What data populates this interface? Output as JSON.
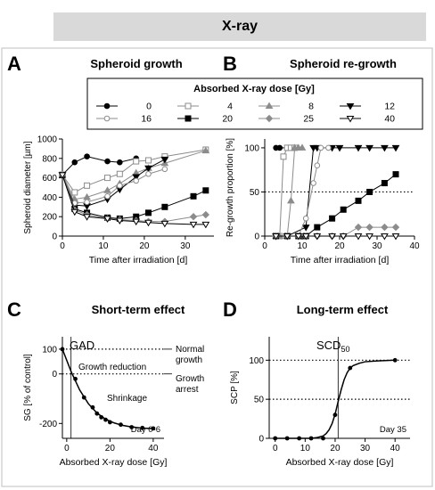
{
  "figure_title": "X-ray",
  "panels": {
    "A": {
      "letter": "A",
      "title": "Spheroid growth"
    },
    "B": {
      "letter": "B",
      "title": "Spheroid re-growth"
    },
    "C": {
      "letter": "C",
      "title": "Short-term effect"
    },
    "D": {
      "letter": "D",
      "title": "Long-term effect"
    }
  },
  "legend": {
    "title": "Absorbed X-ray dose [Gy]",
    "placement": "top-center",
    "entries": [
      {
        "label": "0",
        "marker": "circle-filled"
      },
      {
        "label": "4",
        "marker": "square-open"
      },
      {
        "label": "8",
        "marker": "triangle-up-filled-gray"
      },
      {
        "label": "12",
        "marker": "triangle-down-filled"
      },
      {
        "label": "16",
        "marker": "circle-open"
      },
      {
        "label": "20",
        "marker": "square-filled"
      },
      {
        "label": "25",
        "marker": "diamond-filled-gray"
      },
      {
        "label": "40",
        "marker": "triangle-down-open"
      }
    ]
  },
  "chart_data": [
    {
      "id": "A",
      "type": "line",
      "title": "Spheroid growth",
      "xlabel": "Time after irradiation [d]",
      "ylabel": "Spheroid diameter [µm]",
      "xlim": [
        0,
        37
      ],
      "ylim": [
        0,
        1000
      ],
      "xticks": [
        0,
        10,
        20,
        30
      ],
      "yticks": [
        0,
        200,
        400,
        600,
        800,
        1000
      ],
      "grid": false,
      "series": [
        {
          "name": "0",
          "x": [
            0,
            3,
            6,
            11,
            14,
            18
          ],
          "y": [
            630,
            760,
            820,
            770,
            760,
            800
          ]
        },
        {
          "name": "4",
          "x": [
            0,
            3,
            6,
            11,
            14,
            18,
            21,
            25,
            35
          ],
          "y": [
            630,
            450,
            520,
            600,
            640,
            770,
            780,
            820,
            890
          ]
        },
        {
          "name": "8",
          "x": [
            0,
            3,
            6,
            11,
            14,
            18,
            21,
            25,
            35
          ],
          "y": [
            630,
            380,
            400,
            470,
            540,
            650,
            700,
            750,
            880
          ]
        },
        {
          "name": "12",
          "x": [
            0,
            3,
            6,
            11,
            14,
            18,
            21,
            25
          ],
          "y": [
            630,
            320,
            310,
            380,
            480,
            610,
            700,
            790
          ]
        },
        {
          "name": "16",
          "x": [
            0,
            3,
            6,
            11,
            14,
            18,
            21,
            25
          ],
          "y": [
            630,
            340,
            350,
            410,
            520,
            570,
            640,
            690
          ]
        },
        {
          "name": "20",
          "x": [
            0,
            3,
            6,
            11,
            14,
            18,
            21,
            25,
            32,
            35
          ],
          "y": [
            630,
            280,
            240,
            190,
            180,
            200,
            240,
            300,
            410,
            470
          ]
        },
        {
          "name": "25",
          "x": [
            0,
            3,
            6,
            11,
            14,
            18,
            21,
            25,
            32,
            35
          ],
          "y": [
            630,
            270,
            220,
            180,
            170,
            160,
            150,
            150,
            200,
            220
          ]
        },
        {
          "name": "40",
          "x": [
            0,
            3,
            6,
            11,
            14,
            18,
            21,
            25,
            32,
            35
          ],
          "y": [
            630,
            250,
            200,
            180,
            160,
            150,
            140,
            130,
            120,
            120
          ]
        }
      ]
    },
    {
      "id": "B",
      "type": "line",
      "title": "Spheroid re-growth",
      "xlabel": "Time after irradiation [d]",
      "ylabel": "Re-growth proportion [%]",
      "xlim": [
        0,
        40
      ],
      "ylim": [
        0,
        110
      ],
      "xticks": [
        0,
        10,
        20,
        30,
        40
      ],
      "yticks": [
        0,
        50,
        100
      ],
      "reference_lines": [
        {
          "axis": "y",
          "value": 50,
          "style": "dotted"
        }
      ],
      "series": [
        {
          "name": "0",
          "x": [
            3,
            4,
            6
          ],
          "y": [
            100,
            100,
            100
          ]
        },
        {
          "name": "4",
          "x": [
            3,
            4,
            5,
            6,
            7,
            8
          ],
          "y": [
            0,
            0,
            90,
            100,
            100,
            100
          ]
        },
        {
          "name": "8",
          "x": [
            3,
            4,
            6,
            7,
            8,
            9,
            10
          ],
          "y": [
            0,
            0,
            0,
            40,
            100,
            100,
            100
          ]
        },
        {
          "name": "12",
          "x": [
            3,
            6,
            11,
            13,
            14,
            18,
            20,
            25,
            28,
            32,
            35
          ],
          "y": [
            0,
            0,
            10,
            100,
            100,
            100,
            100,
            100,
            100,
            100,
            100
          ]
        },
        {
          "name": "16",
          "x": [
            3,
            6,
            9,
            11,
            13,
            14,
            15,
            17
          ],
          "y": [
            0,
            0,
            0,
            20,
            60,
            80,
            100,
            100
          ]
        },
        {
          "name": "20",
          "x": [
            3,
            6,
            9,
            11,
            14,
            18,
            21,
            25,
            28,
            32,
            35
          ],
          "y": [
            0,
            0,
            0,
            0,
            10,
            20,
            30,
            40,
            50,
            60,
            70
          ]
        },
        {
          "name": "25",
          "x": [
            3,
            6,
            9,
            11,
            14,
            18,
            21,
            25,
            28,
            32,
            35
          ],
          "y": [
            0,
            0,
            0,
            0,
            0,
            0,
            0,
            10,
            10,
            10,
            10
          ]
        },
        {
          "name": "40",
          "x": [
            3,
            6,
            9,
            11,
            14,
            18,
            21,
            25,
            28,
            32,
            35
          ],
          "y": [
            0,
            0,
            0,
            0,
            0,
            0,
            0,
            0,
            0,
            0,
            0
          ]
        }
      ]
    },
    {
      "id": "C",
      "type": "line",
      "title": "Short-term effect",
      "xlabel": "Absorbed X-ray dose [Gy]",
      "ylabel": "SG [% of control]",
      "xlim": [
        -2,
        45
      ],
      "ylim": [
        -260,
        150
      ],
      "xticks": [
        0,
        20,
        40
      ],
      "yticks": [
        -200,
        0,
        100
      ],
      "reference_lines": [
        {
          "axis": "y",
          "value": 100,
          "style": "dotted"
        },
        {
          "axis": "y",
          "value": 0,
          "style": "dotted"
        },
        {
          "axis": "x",
          "value": 2,
          "style": "solid"
        }
      ],
      "annotations": {
        "gad": "GAD",
        "normal_growth": [
          "Normal",
          "growth"
        ],
        "growth_arrest": [
          "Growth",
          "arrest"
        ],
        "growth_reduction": "Growth reduction",
        "shrinkage": "Shrinkage",
        "period": "Day 0-6"
      },
      "x": [
        -2,
        4,
        8,
        12,
        14,
        16,
        18,
        20,
        25,
        30,
        35,
        40
      ],
      "y": [
        100,
        -20,
        -95,
        -135,
        -160,
        -175,
        -185,
        -195,
        -205,
        -215,
        -218,
        -220
      ],
      "fit_x": [
        -2,
        2,
        6,
        10,
        14,
        18,
        22,
        26,
        30,
        34,
        38,
        40
      ],
      "fit_y": [
        100,
        10,
        -65,
        -120,
        -158,
        -183,
        -198,
        -208,
        -214,
        -218,
        -220,
        -221
      ]
    },
    {
      "id": "D",
      "type": "line",
      "title": "Long-term effect",
      "xlabel": "Absorbed X-ray dose [Gy]",
      "ylabel": "SCP [%]",
      "xlim": [
        -2,
        45
      ],
      "ylim": [
        0,
        130
      ],
      "xticks": [
        0,
        10,
        20,
        30,
        40
      ],
      "yticks": [
        0,
        50,
        100
      ],
      "reference_lines": [
        {
          "axis": "y",
          "value": 100,
          "style": "dotted"
        },
        {
          "axis": "y",
          "value": 50,
          "style": "dotted"
        },
        {
          "axis": "x",
          "value": 21,
          "style": "solid"
        }
      ],
      "annotations": {
        "scd_main": "SCD",
        "scd_sub": "50",
        "period": "Day 35"
      },
      "x": [
        0,
        4,
        8,
        12,
        16,
        20,
        25,
        40
      ],
      "y": [
        0,
        0,
        0,
        0,
        0,
        30,
        90,
        100
      ],
      "fit_x": [
        0,
        8,
        12,
        14,
        16,
        17,
        18,
        19,
        20,
        21,
        22,
        23,
        24,
        25,
        26,
        28,
        30,
        34,
        40
      ],
      "fit_y": [
        0,
        0,
        0,
        1,
        3,
        6,
        11,
        19,
        31,
        47,
        62,
        75,
        84,
        90,
        93,
        96,
        98,
        99,
        100
      ]
    }
  ]
}
